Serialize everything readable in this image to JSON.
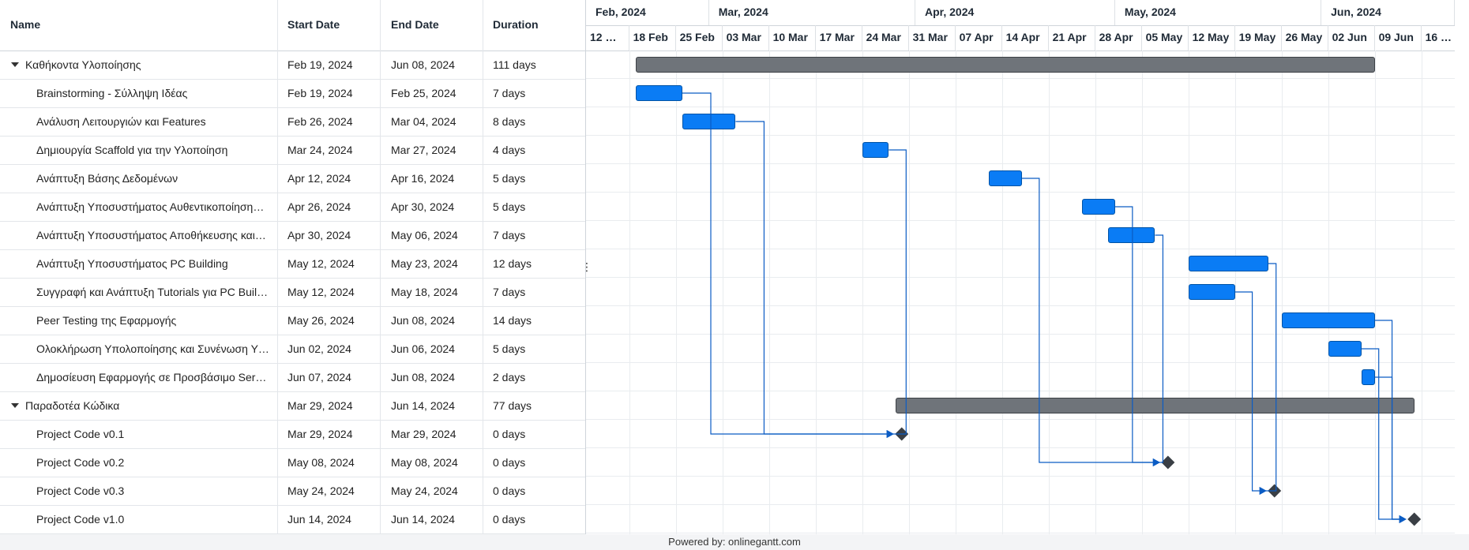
{
  "grid": {
    "columns": {
      "name": "Name",
      "start": "Start Date",
      "end": "End Date",
      "duration": "Duration"
    },
    "rows": [
      {
        "name": "Καθήκοντα Υλοποίησης",
        "start": "Feb 19, 2024",
        "end": "Jun 08, 2024",
        "duration": "111 days",
        "group": true
      },
      {
        "name": "Brainstorming - Σύλληψη Ιδέας",
        "start": "Feb 19, 2024",
        "end": "Feb 25, 2024",
        "duration": "7 days"
      },
      {
        "name": "Ανάλυση Λειτουργιών και Features",
        "start": "Feb 26, 2024",
        "end": "Mar 04, 2024",
        "duration": "8 days"
      },
      {
        "name": "Δημιουργία Scaffold για την Υλοποίηση",
        "start": "Mar 24, 2024",
        "end": "Mar 27, 2024",
        "duration": "4 days"
      },
      {
        "name": "Ανάπτυξη Βάσης Δεδομένων",
        "start": "Apr 12, 2024",
        "end": "Apr 16, 2024",
        "duration": "5 days"
      },
      {
        "name": "Ανάπτυξη Υποσυστήματος Αυθεντικοποίηση…",
        "start": "Apr 26, 2024",
        "end": "Apr 30, 2024",
        "duration": "5 days"
      },
      {
        "name": "Ανάπτυξη Υποσυστήματος Αποθήκευσης και…",
        "start": "Apr 30, 2024",
        "end": "May 06, 2024",
        "duration": "7 days"
      },
      {
        "name": "Ανάπτυξη Υποσυστήματος PC Building",
        "start": "May 12, 2024",
        "end": "May 23, 2024",
        "duration": "12 days"
      },
      {
        "name": "Συγγραφή και Ανάπτυξη Tutorials για PC Buil…",
        "start": "May 12, 2024",
        "end": "May 18, 2024",
        "duration": "7 days"
      },
      {
        "name": "Peer Testing της Εφαρμογής",
        "start": "May 26, 2024",
        "end": "Jun 08, 2024",
        "duration": "14 days"
      },
      {
        "name": "Ολοκλήρωση Υπολοποίησης και Συνένωση Υ…",
        "start": "Jun 02, 2024",
        "end": "Jun 06, 2024",
        "duration": "5 days"
      },
      {
        "name": "Δημοσίευση Εφαρμογής σε Προσβάσιμο Ser…",
        "start": "Jun 07, 2024",
        "end": "Jun 08, 2024",
        "duration": "2 days"
      },
      {
        "name": "Παραδοτέα Κώδικα",
        "start": "Mar 29, 2024",
        "end": "Jun 14, 2024",
        "duration": "77 days",
        "group": true
      },
      {
        "name": "Project Code v0.1",
        "start": "Mar 29, 2024",
        "end": "Mar 29, 2024",
        "duration": "0 days"
      },
      {
        "name": "Project Code v0.2",
        "start": "May 08, 2024",
        "end": "May 08, 2024",
        "duration": "0 days"
      },
      {
        "name": "Project Code v0.3",
        "start": "May 24, 2024",
        "end": "May 24, 2024",
        "duration": "0 days"
      },
      {
        "name": "Project Code v1.0",
        "start": "Jun 14, 2024",
        "end": "Jun 14, 2024",
        "duration": "0 days"
      }
    ]
  },
  "timeline": {
    "months": [
      "Feb, 2024",
      "Mar, 2024",
      "Apr, 2024",
      "May, 2024",
      "Jun, 2024"
    ],
    "weeks": [
      "12 …",
      "18 Feb",
      "25 Feb",
      "03 Mar",
      "10 Mar",
      "17 Mar",
      "24 Mar",
      "31 Mar",
      "07 Apr",
      "14 Apr",
      "21 Apr",
      "28 Apr",
      "05 May",
      "12 May",
      "19 May",
      "26 May",
      "02 Jun",
      "09 Jun",
      "16 …"
    ]
  },
  "colors": {
    "task": "#0a7cf5",
    "summary": "#6f747a",
    "dependency": "#0b5cc4",
    "milestone": "#3a3f45"
  },
  "footer": {
    "text": "Powered by: onlinegantt.com"
  }
}
